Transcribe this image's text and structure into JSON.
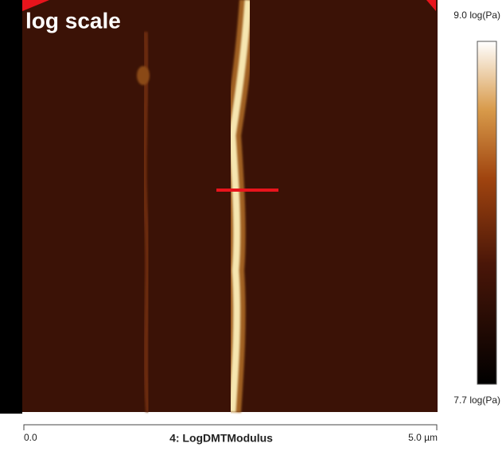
{
  "overlay": {
    "label": "log scale"
  },
  "colorbar": {
    "max_label": "9.0 log(Pa)",
    "min_label": "7.7 log(Pa)"
  },
  "scale": {
    "start": "0.0",
    "end": "5.0 µm"
  },
  "channel": {
    "title": "4: LogDMTModulus"
  }
}
